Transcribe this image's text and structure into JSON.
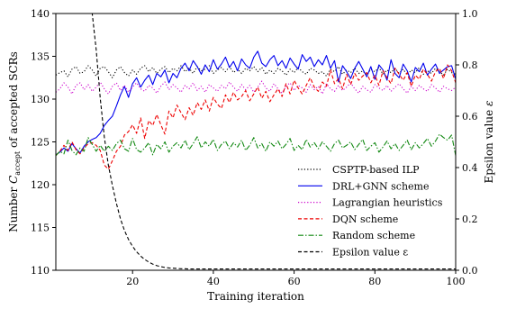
{
  "chart_data": {
    "type": "line",
    "xlabel": "Training iteration",
    "ylabel_parts": {
      "pre": "Number ",
      "var": "C",
      "sub": "accept",
      "post": " of accepted SCRs"
    },
    "ylabel_right_parts": {
      "pre": "Epsilon value ",
      "var": "ε"
    },
    "xlim": [
      1,
      100
    ],
    "ylim": [
      110,
      140
    ],
    "ylim_right": [
      0.0,
      1.0
    ],
    "x_ticks": [
      20,
      40,
      60,
      80,
      100
    ],
    "y_ticks": [
      110,
      115,
      120,
      125,
      130,
      135,
      140
    ],
    "y_ticks_right": [
      "0.0",
      "0.2",
      "0.4",
      "0.6",
      "0.8",
      "1.0"
    ],
    "legend_position": "lower-right",
    "grid": false,
    "x": [
      1,
      2,
      3,
      4,
      5,
      6,
      7,
      8,
      9,
      10,
      11,
      12,
      13,
      14,
      15,
      16,
      17,
      18,
      19,
      20,
      21,
      22,
      23,
      24,
      25,
      26,
      27,
      28,
      29,
      30,
      31,
      32,
      33,
      34,
      35,
      36,
      37,
      38,
      39,
      40,
      41,
      42,
      43,
      44,
      45,
      46,
      47,
      48,
      49,
      50,
      51,
      52,
      53,
      54,
      55,
      56,
      57,
      58,
      59,
      60,
      61,
      62,
      63,
      64,
      65,
      66,
      67,
      68,
      69,
      70,
      71,
      72,
      73,
      74,
      75,
      76,
      77,
      78,
      79,
      80,
      81,
      82,
      83,
      84,
      85,
      86,
      87,
      88,
      89,
      90,
      91,
      92,
      93,
      94,
      95,
      96,
      97,
      98,
      99,
      100
    ],
    "series": [
      {
        "name": "CSPTP-based ILP",
        "axis": "left",
        "color": "#000000",
        "dash": "1.2,2.2",
        "values": [
          132.8,
          133.1,
          133.3,
          132.6,
          133.5,
          133.8,
          133.0,
          133.2,
          133.9,
          133.4,
          132.7,
          133.6,
          133.8,
          133.2,
          132.5,
          133.4,
          133.8,
          133.1,
          132.7,
          133.4,
          132.9,
          133.6,
          133.9,
          133.2,
          133.7,
          133.0,
          133.5,
          133.8,
          133.1,
          133.6,
          133.3,
          133.9,
          133.2,
          133.6,
          133.0,
          133.8,
          133.3,
          133.5,
          133.9,
          133.0,
          133.4,
          133.7,
          133.2,
          133.8,
          133.1,
          133.5,
          133.0,
          133.6,
          133.3,
          133.8,
          133.2,
          133.7,
          132.9,
          133.4,
          133.0,
          133.6,
          133.3,
          132.8,
          133.5,
          133.1,
          133.7,
          133.2,
          132.9,
          133.6,
          133.4,
          133.0,
          133.2,
          132.7,
          133.5,
          133.2,
          133.8,
          132.9,
          133.4,
          133.1,
          133.6,
          133.0,
          133.3,
          132.8,
          133.5,
          133.2,
          133.7,
          132.9,
          133.4,
          133.1,
          133.6,
          133.0,
          133.5,
          132.8,
          133.4,
          133.1,
          133.7,
          132.9,
          133.3,
          133.0,
          133.6,
          133.2,
          132.8,
          133.5,
          133.1,
          132.9
        ]
      },
      {
        "name": "DRL+GNN scheme",
        "axis": "left",
        "color": "#0000ee",
        "dash": "",
        "values": [
          123.5,
          123.8,
          124.3,
          123.9,
          124.8,
          124.2,
          123.7,
          124.5,
          125.0,
          125.3,
          125.5,
          126.0,
          126.9,
          127.5,
          128.0,
          129.2,
          130.5,
          131.5,
          130.2,
          131.8,
          132.5,
          131.4,
          132.2,
          132.8,
          131.7,
          133.0,
          132.6,
          133.4,
          131.9,
          133.0,
          132.5,
          133.6,
          134.2,
          133.3,
          134.5,
          133.8,
          132.9,
          134.0,
          133.2,
          134.6,
          133.5,
          134.1,
          134.9,
          133.7,
          134.4,
          133.3,
          134.7,
          134.0,
          133.6,
          134.9,
          135.6,
          134.2,
          133.8,
          134.6,
          135.1,
          133.9,
          134.5,
          133.6,
          134.8,
          134.1,
          133.5,
          135.2,
          134.4,
          134.9,
          133.8,
          134.6,
          134.0,
          135.1,
          133.6,
          134.5,
          132.0,
          133.9,
          133.2,
          132.4,
          133.6,
          134.4,
          133.5,
          132.6,
          133.8,
          132.3,
          134.0,
          133.4,
          132.2,
          134.6,
          133.0,
          132.5,
          134.1,
          133.3,
          132.0,
          133.7,
          133.2,
          134.2,
          132.8,
          133.5,
          134.1,
          133.0,
          133.4,
          133.8,
          133.9,
          132.3
        ]
      },
      {
        "name": "Lagrangian heuristics",
        "axis": "left",
        "color": "#cc00cc",
        "dash": "1.2,2.2",
        "values": [
          130.8,
          131.2,
          131.9,
          131.4,
          130.6,
          131.6,
          131.9,
          131.1,
          131.7,
          130.9,
          131.4,
          132.0,
          131.2,
          130.6,
          131.5,
          131.9,
          131.0,
          131.6,
          130.8,
          131.4,
          131.9,
          131.2,
          130.9,
          131.6,
          131.3,
          130.7,
          131.5,
          132.0,
          131.1,
          131.7,
          131.3,
          130.8,
          131.6,
          131.2,
          131.9,
          131.0,
          131.5,
          130.8,
          131.7,
          131.3,
          130.9,
          131.6,
          131.2,
          132.0,
          131.4,
          130.9,
          131.7,
          131.1,
          131.6,
          130.8,
          131.4,
          132.1,
          131.3,
          130.9,
          131.8,
          131.2,
          130.7,
          131.5,
          131.9,
          131.0,
          131.6,
          131.3,
          130.8,
          131.7,
          131.1,
          131.5,
          130.6,
          131.8,
          131.2,
          130.9,
          131.6,
          131.0,
          131.4,
          131.9,
          131.2,
          130.7,
          131.5,
          131.1,
          130.8,
          131.7,
          131.3,
          131.0,
          131.6,
          130.9,
          131.4,
          131.8,
          131.2,
          130.7,
          131.5,
          131.0,
          131.6,
          131.2,
          130.9,
          131.7,
          131.3,
          130.8,
          131.5,
          131.2,
          131.0,
          131.4
        ]
      },
      {
        "name": "DQN scheme",
        "axis": "left",
        "color": "#ee0000",
        "dash": "4,2.5",
        "values": [
          123.4,
          123.9,
          124.6,
          124.0,
          125.0,
          124.1,
          123.6,
          124.3,
          124.8,
          124.9,
          124.6,
          124.0,
          122.3,
          121.8,
          122.8,
          123.9,
          124.5,
          125.8,
          126.2,
          127.0,
          126.0,
          127.8,
          125.4,
          127.5,
          126.9,
          128.2,
          127.0,
          125.9,
          128.6,
          127.8,
          129.3,
          128.4,
          127.6,
          129.0,
          128.1,
          129.6,
          128.8,
          129.9,
          128.6,
          130.2,
          129.4,
          128.9,
          130.5,
          129.6,
          130.8,
          129.9,
          130.3,
          131.0,
          129.8,
          130.6,
          131.4,
          130.1,
          130.9,
          129.7,
          130.5,
          131.2,
          130.3,
          131.8,
          130.6,
          132.2,
          131.3,
          130.6,
          131.6,
          132.5,
          131.4,
          130.9,
          132.0,
          131.5,
          133.4,
          131.8,
          132.4,
          131.2,
          132.9,
          131.7,
          133.0,
          132.2,
          132.7,
          133.1,
          131.9,
          132.8,
          131.6,
          133.3,
          132.5,
          131.8,
          133.6,
          132.9,
          132.2,
          133.1,
          131.5,
          132.8,
          132.3,
          133.5,
          132.9,
          132.1,
          133.2,
          133.6,
          132.4,
          134.0,
          133.3,
          131.9
        ]
      },
      {
        "name": "Random scheme",
        "axis": "left",
        "color": "#118811",
        "dash": "6,2,1.5,2",
        "values": [
          123.4,
          123.9,
          123.6,
          125.2,
          124.0,
          123.5,
          124.3,
          123.9,
          125.5,
          124.7,
          123.9,
          124.6,
          123.9,
          124.5,
          124.0,
          124.8,
          125.2,
          124.2,
          123.9,
          125.4,
          124.1,
          123.8,
          124.3,
          124.9,
          123.5,
          124.7,
          124.2,
          125.0,
          123.8,
          124.5,
          124.9,
          124.3,
          125.2,
          124.1,
          124.8,
          125.6,
          124.3,
          125.0,
          124.5,
          125.3,
          124.0,
          124.7,
          125.1,
          124.2,
          124.9,
          124.4,
          125.2,
          124.0,
          124.6,
          125.5,
          124.3,
          124.8,
          123.9,
          125.0,
          124.5,
          125.1,
          124.2,
          124.7,
          125.4,
          124.0,
          124.6,
          124.1,
          125.3,
          124.4,
          124.9,
          124.2,
          125.0,
          124.5,
          123.9,
          124.8,
          125.2,
          124.3,
          124.6,
          125.0,
          124.1,
          124.7,
          125.3,
          124.0,
          124.5,
          124.9,
          123.8,
          124.4,
          125.1,
          124.2,
          124.8,
          124.0,
          124.6,
          125.2,
          124.1,
          124.9,
          124.3,
          124.8,
          125.4,
          124.5,
          125.1,
          125.9,
          125.5,
          125.2,
          125.8,
          123.4
        ]
      },
      {
        "name": "Epsilon value ε",
        "axis": "right",
        "color": "#000000",
        "dash": "4,2.5",
        "values": [
          1.0,
          1.0,
          1.0,
          1.0,
          1.0,
          1.0,
          1.0,
          1.0,
          1.0,
          1.0,
          0.86,
          0.67,
          0.52,
          0.41,
          0.33,
          0.26,
          0.2,
          0.155,
          0.12,
          0.093,
          0.072,
          0.055,
          0.042,
          0.032,
          0.024,
          0.018,
          0.014,
          0.011,
          0.009,
          0.008,
          0.007,
          0.006,
          0.006,
          0.005,
          0.005,
          0.005,
          0.005,
          0.005,
          0.005,
          0.005,
          0.005,
          0.005,
          0.005,
          0.005,
          0.005,
          0.005,
          0.005,
          0.005,
          0.005,
          0.005,
          0.005,
          0.005,
          0.005,
          0.005,
          0.005,
          0.005,
          0.005,
          0.005,
          0.005,
          0.005,
          0.005,
          0.005,
          0.005,
          0.005,
          0.005,
          0.005,
          0.005,
          0.005,
          0.005,
          0.005,
          0.005,
          0.005,
          0.005,
          0.005,
          0.005,
          0.005,
          0.005,
          0.005,
          0.005,
          0.005,
          0.005,
          0.005,
          0.005,
          0.005,
          0.005,
          0.005,
          0.005,
          0.005,
          0.005,
          0.005,
          0.005,
          0.005,
          0.005,
          0.005,
          0.005,
          0.005,
          0.005,
          0.005,
          0.005,
          0.005
        ]
      }
    ]
  }
}
